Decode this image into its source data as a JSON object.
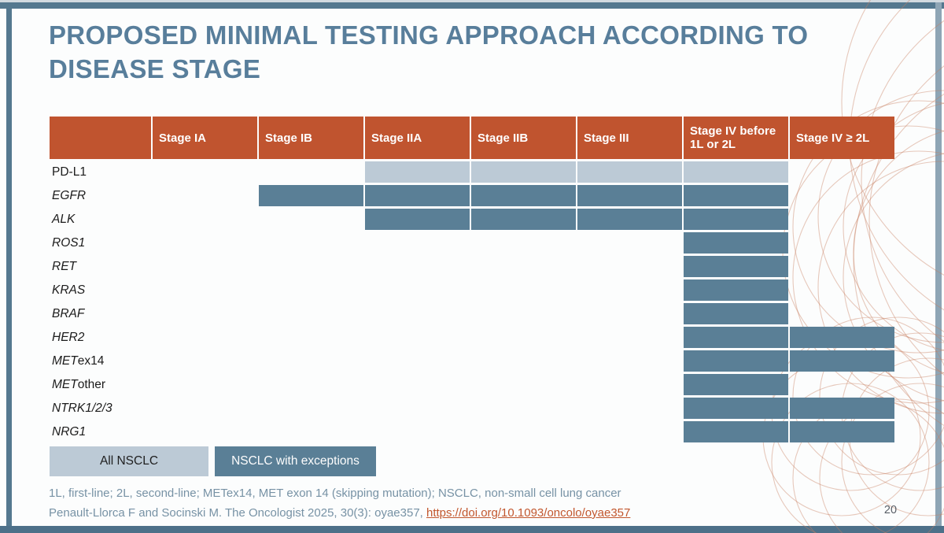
{
  "slide": {
    "title": "PROPOSED MINIMAL TESTING APPROACH ACCORDING TO\nDISEASE STAGE",
    "page_number": "20"
  },
  "table": {
    "columns": [
      "",
      "Stage IA",
      "Stage IB",
      "Stage IIA",
      "Stage IIB",
      "Stage III",
      "Stage IV before 1L or 2L",
      "Stage IV ≥ 2L"
    ],
    "rows": [
      {
        "label_em": "",
        "label_rest": "PD-L1",
        "fills": [
          "",
          "",
          "all",
          "all",
          "all",
          "all",
          ""
        ]
      },
      {
        "label_em": "EGFR",
        "label_rest": "",
        "fills": [
          "",
          "exceptions",
          "exceptions",
          "exceptions",
          "exceptions",
          "exceptions",
          ""
        ]
      },
      {
        "label_em": "ALK",
        "label_rest": "",
        "fills": [
          "",
          "",
          "exceptions",
          "exceptions",
          "exceptions",
          "exceptions",
          ""
        ]
      },
      {
        "label_em": "ROS1",
        "label_rest": "",
        "fills": [
          "",
          "",
          "",
          "",
          "",
          "exceptions",
          ""
        ]
      },
      {
        "label_em": "RET",
        "label_rest": "",
        "fills": [
          "",
          "",
          "",
          "",
          "",
          "exceptions",
          ""
        ]
      },
      {
        "label_em": "KRAS",
        "label_rest": "",
        "fills": [
          "",
          "",
          "",
          "",
          "",
          "exceptions",
          ""
        ]
      },
      {
        "label_em": "BRAF",
        "label_rest": "",
        "fills": [
          "",
          "",
          "",
          "",
          "",
          "exceptions",
          ""
        ]
      },
      {
        "label_em": "HER2",
        "label_rest": "",
        "fills": [
          "",
          "",
          "",
          "",
          "",
          "exceptions",
          "exceptions"
        ]
      },
      {
        "label_em": "MET",
        "label_rest": "ex14",
        "fills": [
          "",
          "",
          "",
          "",
          "",
          "exceptions",
          "exceptions"
        ]
      },
      {
        "label_em": "MET",
        "label_rest": " other",
        "fills": [
          "",
          "",
          "",
          "",
          "",
          "exceptions",
          ""
        ]
      },
      {
        "label_em": "NTRK1/2/3",
        "label_rest": "",
        "fills": [
          "",
          "",
          "",
          "",
          "",
          "exceptions",
          "exceptions"
        ]
      },
      {
        "label_em": "NRG1",
        "label_rest": "",
        "fills": [
          "",
          "",
          "",
          "",
          "",
          "exceptions",
          "exceptions"
        ]
      }
    ]
  },
  "legend": {
    "all_label": "All NSCLC",
    "exceptions_label": "NSCLC with exceptions"
  },
  "footer": {
    "footnote": "1L, first-line; 2L, second-line; METex14, MET exon 14 (skipping mutation); NSCLC, non-small cell lung cancer",
    "citation_text": "Penault-Llorca F and Socinski M. The Oncologist 2025, 30(3): oyae357, ",
    "citation_link": "https://doi.org/10.1093/oncolo/oyae357"
  },
  "colors": {
    "header_bg": "#C0542F",
    "cell_all": "#BCCAD6",
    "cell_exceptions": "#5A7F96",
    "title": "#587E9B",
    "frame": "#54788F",
    "frame_right": "#8EA5B5",
    "frame_bottom": "#4D7089",
    "link": "#C2572E",
    "pattern": "#C97E5F",
    "footnote": "#7792A5"
  }
}
